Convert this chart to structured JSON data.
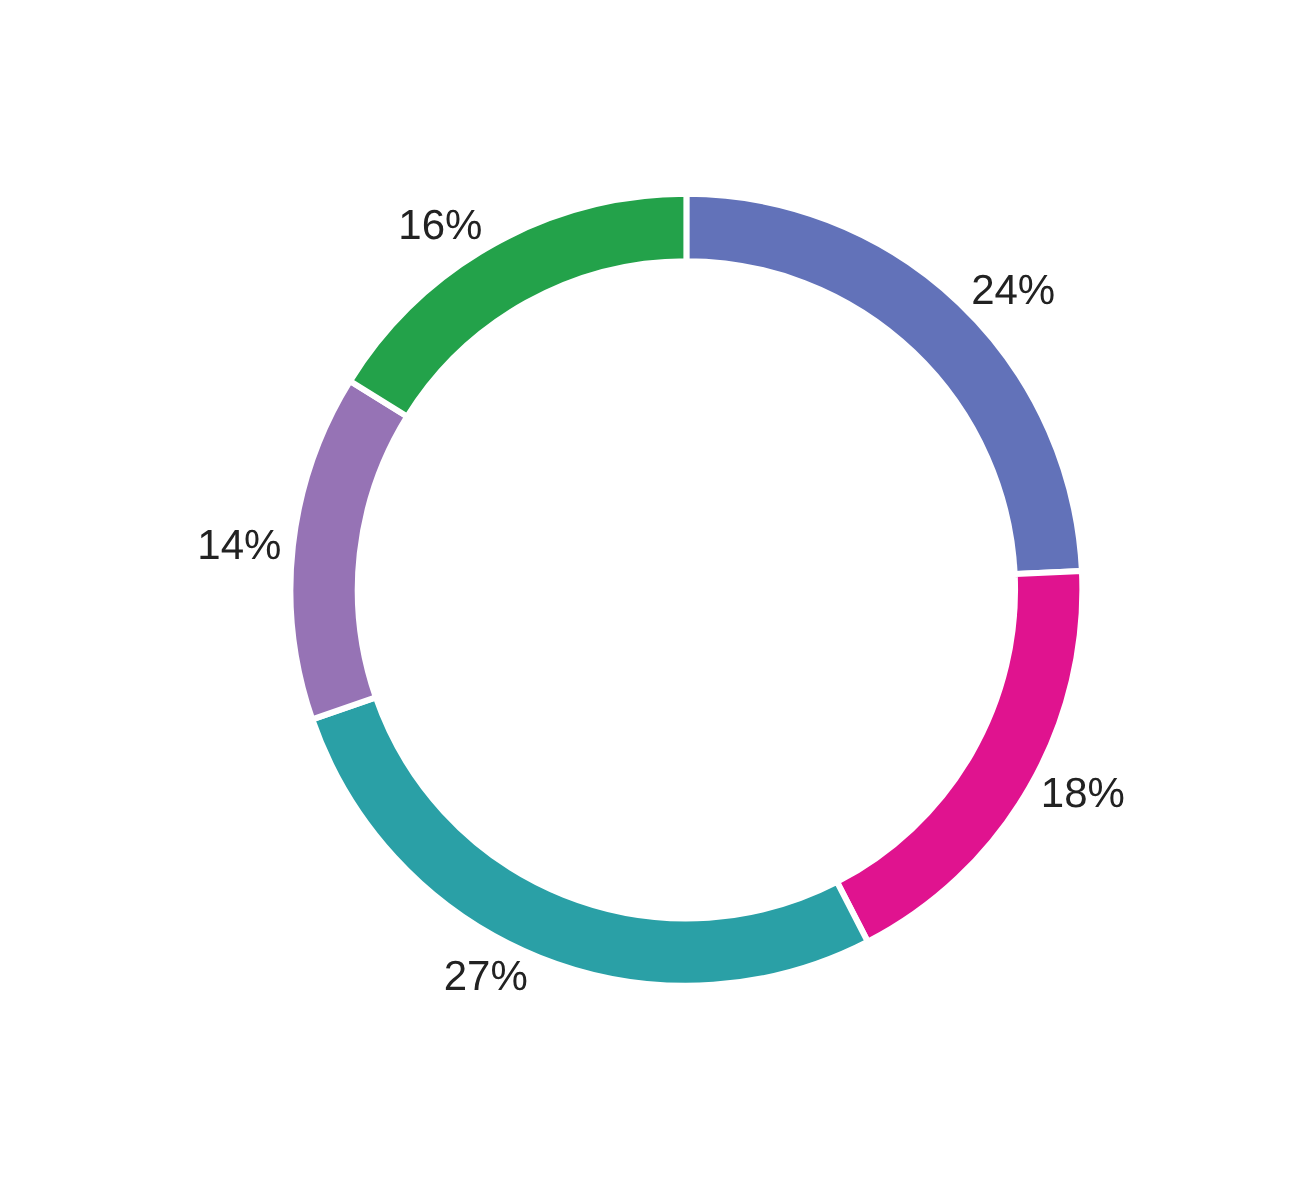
{
  "chart_data": {
    "type": "donut",
    "categories": [
      null,
      null,
      null,
      null,
      null
    ],
    "values": [
      24,
      18,
      27,
      14,
      16
    ],
    "value_labels": [
      "24%",
      "18%",
      "27%",
      "14%",
      "16%"
    ],
    "colors": [
      "#6272b9",
      "#e0138f",
      "#2aa0a6",
      "#9673b5",
      "#23a24a"
    ]
  }
}
